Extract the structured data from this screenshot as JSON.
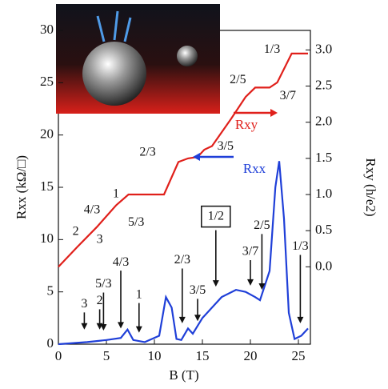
{
  "chart_data": {
    "type": "line",
    "x_label": "B (T)",
    "y_label": "Rxx (kΩ/□)",
    "y2_label": "Rxy (h/e2)",
    "xlim": [
      0,
      26.25
    ],
    "xticks": [
      0,
      5,
      10,
      15,
      20,
      25
    ],
    "ylim": [
      0,
      30
    ],
    "yticks": [
      0,
      5,
      10,
      15,
      20,
      25,
      30
    ],
    "y2lim": [
      -1.07,
      3.27
    ],
    "y2ticks": [
      {
        "value": 0,
        "label": "0.0"
      },
      {
        "value": 0.5,
        "label": "0.5"
      },
      {
        "value": 1,
        "label": "1.0"
      },
      {
        "value": 1.5,
        "label": "1.5"
      },
      {
        "value": 2,
        "label": "2.0"
      },
      {
        "value": 2.5,
        "label": "2.5"
      },
      {
        "value": 3,
        "label": "3.0"
      }
    ],
    "series": [
      {
        "name": "Rxy",
        "color": "#e0201b",
        "axis": "y2",
        "x": [
          0,
          2,
          4,
          6,
          7.3,
          11,
          12.5,
          13.5,
          14.5,
          15.2,
          16,
          18,
          19.5,
          20.5,
          22,
          22.8,
          24.3,
          26
        ],
        "values": [
          0,
          0.28,
          0.55,
          0.85,
          1.0,
          1.0,
          1.45,
          1.5,
          1.52,
          1.62,
          1.67,
          2.05,
          2.35,
          2.48,
          2.48,
          2.55,
          2.95,
          2.95
        ]
      },
      {
        "name": "Rxx",
        "color": "#1f3fd8",
        "x": [
          0,
          3,
          5,
          6.5,
          7.2,
          7.8,
          9,
          10.5,
          11.2,
          11.8,
          12.3,
          12.8,
          13.5,
          14,
          15,
          17,
          18.5,
          19.5,
          20.5,
          21,
          22,
          22.6,
          23,
          23.5,
          24,
          24.6,
          25.3,
          26
        ],
        "values": [
          0,
          0.2,
          0.4,
          0.6,
          1.4,
          0.4,
          0.2,
          0.8,
          4.5,
          3.5,
          0.5,
          0.4,
          1.5,
          1.0,
          2.5,
          4.5,
          5.2,
          5.0,
          4.5,
          4.2,
          7,
          15,
          17.5,
          12,
          3,
          0.5,
          0.8,
          1.5
        ]
      }
    ],
    "annotations": [
      {
        "text": "3",
        "x": 2.7,
        "y": 3.8,
        "y_end": 1.4
      },
      {
        "text": "2",
        "x": 4.3,
        "y": 4.1,
        "y_end": 1.4
      },
      {
        "text": "5/3",
        "x": 4.7,
        "y": 5.7,
        "y_end": 1.3
      },
      {
        "text": "4/3",
        "x": 6.5,
        "y": 7.8,
        "y_end": 1.5
      },
      {
        "text": "1",
        "x": 8.4,
        "y": 4.7,
        "y_end": 1.1
      },
      {
        "text": "2/3",
        "x": 12.9,
        "y": 8.0,
        "y_end": 2.0
      },
      {
        "text": "3/5",
        "x": 14.5,
        "y": 5.1,
        "y_end": 2.2
      },
      {
        "text": "1/2",
        "x": 16.4,
        "y": 12.2,
        "y_end": 5.5,
        "boxed": true
      },
      {
        "text": "3/7",
        "x": 20.0,
        "y": 8.8,
        "y_end": 5.6
      },
      {
        "text": "2/5",
        "x": 21.2,
        "y": 11.3,
        "y_end": 5.2
      },
      {
        "text": "1/3",
        "x": 25.2,
        "y": 9.3,
        "y_end": 2.0
      }
    ],
    "plateau_labels": [
      {
        "text": "1/3",
        "x": 22.25,
        "y2": 3.0
      },
      {
        "text": "2/5",
        "x": 18.7,
        "y2": 2.58
      },
      {
        "text": "3/7",
        "x": 23.9,
        "y2": 2.36
      },
      {
        "text": "3/5",
        "x": 17.4,
        "y2": 1.66
      },
      {
        "text": "2/3",
        "x": 9.3,
        "y2": 1.58
      },
      {
        "text": "1",
        "x": 6.0,
        "y2": 1.0
      },
      {
        "text": "4/3",
        "x": 3.5,
        "y2": 0.78
      },
      {
        "text": "5/3",
        "x": 8.1,
        "y2": 0.61
      },
      {
        "text": "2",
        "x": 1.8,
        "y2": 0.48
      },
      {
        "text": "3",
        "x": 4.3,
        "y2": 0.37
      }
    ]
  }
}
